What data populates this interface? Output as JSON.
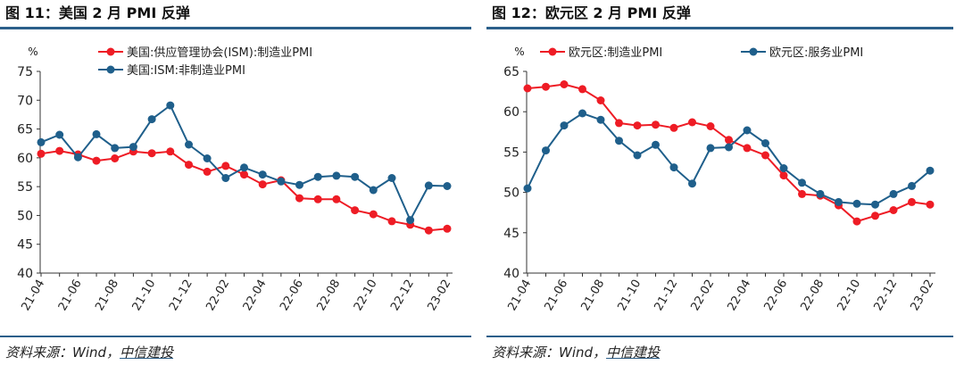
{
  "charts": [
    {
      "figure_title": "图 11：美国 2 月 PMI 反弹",
      "source_label": "资料来源：Wind，",
      "source_brand": "中信建投",
      "chart_data": {
        "type": "line",
        "unit_label": "%",
        "ylim": [
          40,
          75
        ],
        "yticks": [
          40,
          45,
          50,
          55,
          60,
          65,
          70,
          75
        ],
        "xtick_labels": [
          "21-04",
          "21-06",
          "21-08",
          "21-10",
          "21-12",
          "22-02",
          "22-04",
          "22-06",
          "22-08",
          "22-10",
          "22-12",
          "23-02"
        ],
        "x": [
          "21-04",
          "21-05",
          "21-06",
          "21-07",
          "21-08",
          "21-09",
          "21-10",
          "21-11",
          "21-12",
          "22-01",
          "22-02",
          "22-03",
          "22-04",
          "22-05",
          "22-06",
          "22-07",
          "22-08",
          "22-09",
          "22-10",
          "22-11",
          "22-12",
          "23-01",
          "23-02"
        ],
        "legend_placement": "top-left",
        "grid": false,
        "series": [
          {
            "name": "美国:供应管理协会(ISM):制造业PMI",
            "color": "#ee1c25",
            "values": [
              60.7,
              61.2,
              60.6,
              59.5,
              59.9,
              61.1,
              60.8,
              61.1,
              58.8,
              57.6,
              58.6,
              57.1,
              55.4,
              56.1,
              53.0,
              52.8,
              52.8,
              50.9,
              50.2,
              49.0,
              48.4,
              47.4,
              47.7
            ]
          },
          {
            "name": "美国:ISM:非制造业PMI",
            "color": "#1f5f8b",
            "values": [
              62.7,
              64.0,
              60.1,
              64.1,
              61.7,
              61.9,
              66.7,
              69.1,
              62.3,
              59.9,
              56.5,
              58.3,
              57.1,
              55.9,
              55.3,
              56.7,
              56.9,
              56.7,
              54.4,
              56.5,
              49.2,
              55.2,
              55.1
            ]
          }
        ]
      }
    },
    {
      "figure_title": "图 12：欧元区 2 月 PMI 反弹",
      "source_label": "资料来源：Wind，",
      "source_brand": "中信建投",
      "chart_data": {
        "type": "line",
        "unit_label": "%",
        "ylim": [
          40,
          65
        ],
        "yticks": [
          40,
          45,
          50,
          55,
          60,
          65
        ],
        "xtick_labels": [
          "21-04",
          "21-06",
          "21-08",
          "21-10",
          "21-12",
          "22-02",
          "22-04",
          "22-06",
          "22-08",
          "22-10",
          "22-12",
          "23-02"
        ],
        "x": [
          "21-04",
          "21-05",
          "21-06",
          "21-07",
          "21-08",
          "21-09",
          "21-10",
          "21-11",
          "21-12",
          "22-01",
          "22-02",
          "22-03",
          "22-04",
          "22-05",
          "22-06",
          "22-07",
          "22-08",
          "22-09",
          "22-10",
          "22-11",
          "22-12",
          "23-01",
          "23-02"
        ],
        "legend_placement": "top",
        "grid": false,
        "series": [
          {
            "name": "欧元区:制造业PMI",
            "color": "#ee1c25",
            "values": [
              62.9,
              63.1,
              63.4,
              62.8,
              61.4,
              58.6,
              58.3,
              58.4,
              58.0,
              58.7,
              58.2,
              56.5,
              55.5,
              54.6,
              52.1,
              49.8,
              49.6,
              48.4,
              46.4,
              47.1,
              47.8,
              48.8,
              48.5
            ]
          },
          {
            "name": "欧元区:服务业PMI",
            "color": "#1f5f8b",
            "values": [
              50.5,
              55.2,
              58.3,
              59.8,
              59.0,
              56.4,
              54.6,
              55.9,
              53.1,
              51.1,
              55.5,
              55.6,
              57.7,
              56.1,
              53.0,
              51.2,
              49.8,
              48.8,
              48.6,
              48.5,
              49.8,
              50.8,
              52.7
            ]
          }
        ]
      }
    }
  ]
}
